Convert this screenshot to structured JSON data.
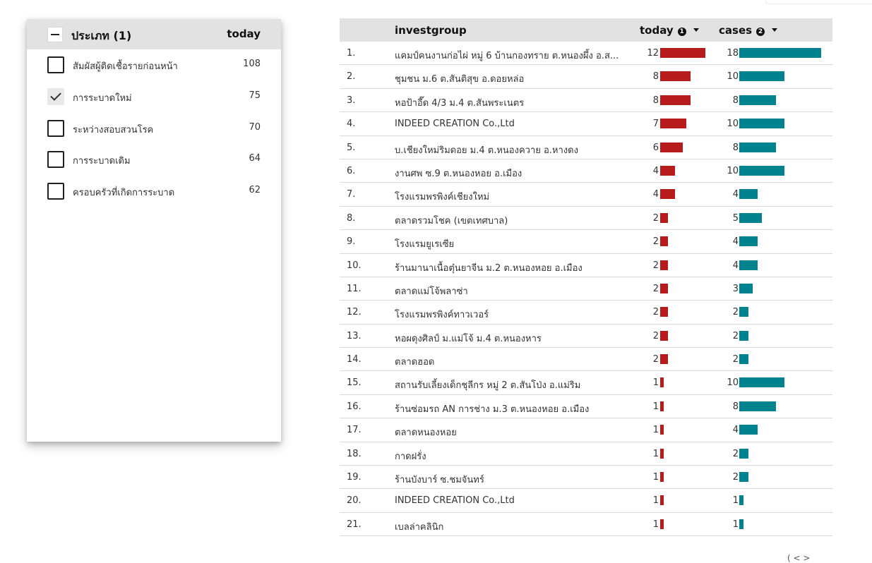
{
  "filter": {
    "title": "ประเภท (1)",
    "column": "today",
    "items": [
      {
        "label": "สัมผัสผู้ติดเชื้อรายก่อนหน้า",
        "count": "108",
        "checked": false
      },
      {
        "label": "การระบาดใหม่",
        "count": "75",
        "checked": true
      },
      {
        "label": "ระหว่างสอบสวนโรค",
        "count": "70",
        "checked": false
      },
      {
        "label": "การระบาดเดิม",
        "count": "64",
        "checked": false
      },
      {
        "label": "ครอบครัวที่เกิดการระบาด",
        "count": "62",
        "checked": false
      }
    ]
  },
  "table": {
    "headers": {
      "investgroup": "investgroup",
      "today": "today",
      "today_info": "1",
      "cases": "cases",
      "cases_info": "2"
    },
    "colors": {
      "today_bar": "#b71c1c",
      "cases_bar": "#00838f"
    },
    "max_today": 12,
    "max_cases": 18,
    "rows": [
      {
        "idx": "1.",
        "name": "แคมป์คนงานก่อไผ่ หมู่ 6 บ้านกองทราย ต.หนองผึ้ง อ.ส...",
        "today": 12,
        "cases": 18
      },
      {
        "idx": "2.",
        "name": "ชุมชน ม.6 ต.สันติสุข อ.ดอยหล่อ",
        "today": 8,
        "cases": 10
      },
      {
        "idx": "3.",
        "name": "หอป้าอี๊ด 4/3 ม.4 ต.สันพระเนตร",
        "today": 8,
        "cases": 8
      },
      {
        "idx": "4.",
        "name": "INDEED CREATION Co.,Ltd",
        "today": 7,
        "cases": 10
      },
      {
        "idx": "5.",
        "name": "บ.เชียงใหม่ริมดอย ม.4 ต.หนองควาย อ.หางดง",
        "today": 6,
        "cases": 8
      },
      {
        "idx": "6.",
        "name": "งานศพ ซ.9 ต.หนองหอย อ.เมือง",
        "today": 4,
        "cases": 10
      },
      {
        "idx": "7.",
        "name": "โรงแรมพรพิงค์เชียงใหม่",
        "today": 4,
        "cases": 4
      },
      {
        "idx": "8.",
        "name": "ตลาดรวมโชค (เขตเทศบาล)",
        "today": 2,
        "cases": 5
      },
      {
        "idx": "9.",
        "name": "โรงแรมยูเรเซีย",
        "today": 2,
        "cases": 4
      },
      {
        "idx": "10.",
        "name": "ร้านมานาเนื้อตุ๋นยาจีน ม.2 ต.หนองหอย อ.เมือง",
        "today": 2,
        "cases": 4
      },
      {
        "idx": "11.",
        "name": "ตลาดแม่โจ้พลาซ่า",
        "today": 2,
        "cases": 3
      },
      {
        "idx": "12.",
        "name": "โรงแรมพรพิงค์ทาวเวอร์",
        "today": 2,
        "cases": 2
      },
      {
        "idx": "13.",
        "name": "หอผดุงศิลป์ ม.แม่โจ้ ม.4 ต.หนองหาร",
        "today": 2,
        "cases": 2
      },
      {
        "idx": "14.",
        "name": "ตลาดฮอด",
        "today": 2,
        "cases": 2
      },
      {
        "idx": "15.",
        "name": "สถานรับเลี้ยงเด็กชุลีกร หมู่ 2 ต.สันโป่ง อ.แม่ริม",
        "today": 1,
        "cases": 10
      },
      {
        "idx": "16.",
        "name": "ร้านซ่อมรถ AN การช่าง ม.3 ต.หนองหอย อ.เมือง",
        "today": 1,
        "cases": 8
      },
      {
        "idx": "17.",
        "name": "ตลาดหนองหอย",
        "today": 1,
        "cases": 4
      },
      {
        "idx": "18.",
        "name": "กาดฝรั่ง",
        "today": 1,
        "cases": 2
      },
      {
        "idx": "19.",
        "name": "ร้านบังบาร์ ซ.ชมจันทร์",
        "today": 1,
        "cases": 2
      },
      {
        "idx": "20.",
        "name": "INDEED CREATION Co.,Ltd",
        "today": 1,
        "cases": 1
      },
      {
        "idx": "21.",
        "name": "เบลล่าคลินิก",
        "today": 1,
        "cases": 1
      }
    ]
  },
  "pager_fragment": "( < >"
}
